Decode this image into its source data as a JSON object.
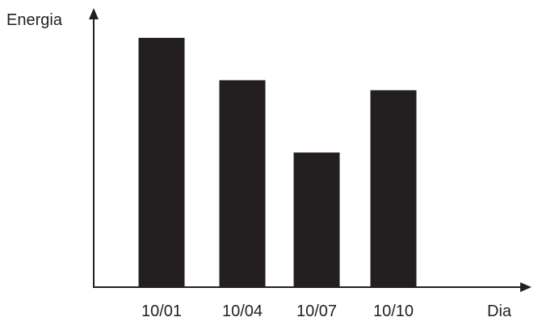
{
  "chart_data": {
    "type": "bar",
    "categories": [
      "10/01",
      "10/04",
      "10/07",
      "10/10"
    ],
    "values": [
      100,
      83,
      54,
      79
    ],
    "title": "",
    "xlabel": "Dia",
    "ylabel": "Energia",
    "ylim": [
      0,
      110
    ],
    "grid": false,
    "legend": "none",
    "y_ticks_shown": false,
    "bar_color": "#231f20",
    "axis_color": "#231f20"
  }
}
